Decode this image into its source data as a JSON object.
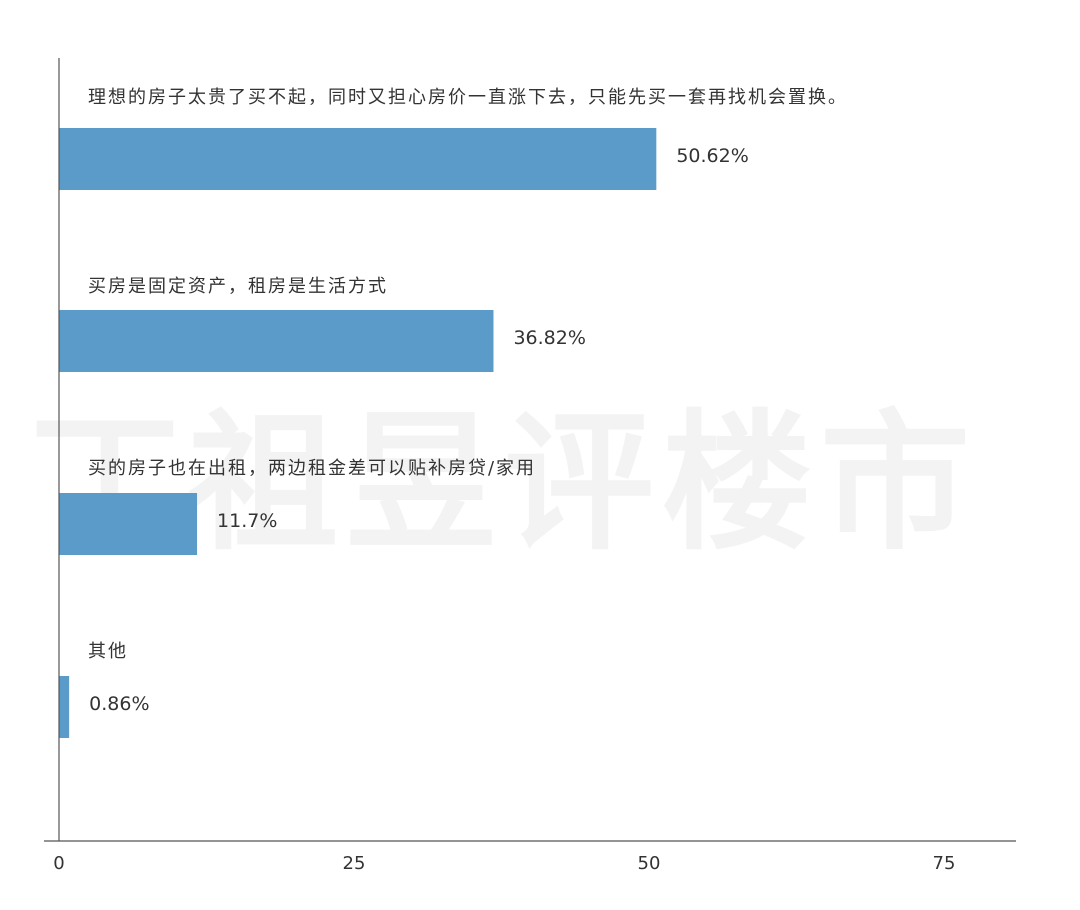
{
  "watermark": "丁祖昱评楼市",
  "chart_data": {
    "type": "bar",
    "orientation": "horizontal",
    "categories": [
      "理想的房子太贵了买不起，同时又担心房价一直涨下去，只能先买一套再找机会置换。",
      "买房是固定资产，租房是生活方式",
      "买的房子也在出租，两边租金差可以贴补房贷/家用",
      "其他"
    ],
    "values": [
      50.62,
      36.82,
      11.7,
      0.86
    ],
    "value_labels": [
      "50.62%",
      "36.82%",
      "11.7%",
      "0.86%"
    ],
    "xlim": [
      0,
      80
    ],
    "xticks": [
      0,
      25,
      50,
      75
    ],
    "grid": false,
    "colors": {
      "bar": "#5b9bc9",
      "axis": "#555555",
      "text": "#333333"
    }
  }
}
